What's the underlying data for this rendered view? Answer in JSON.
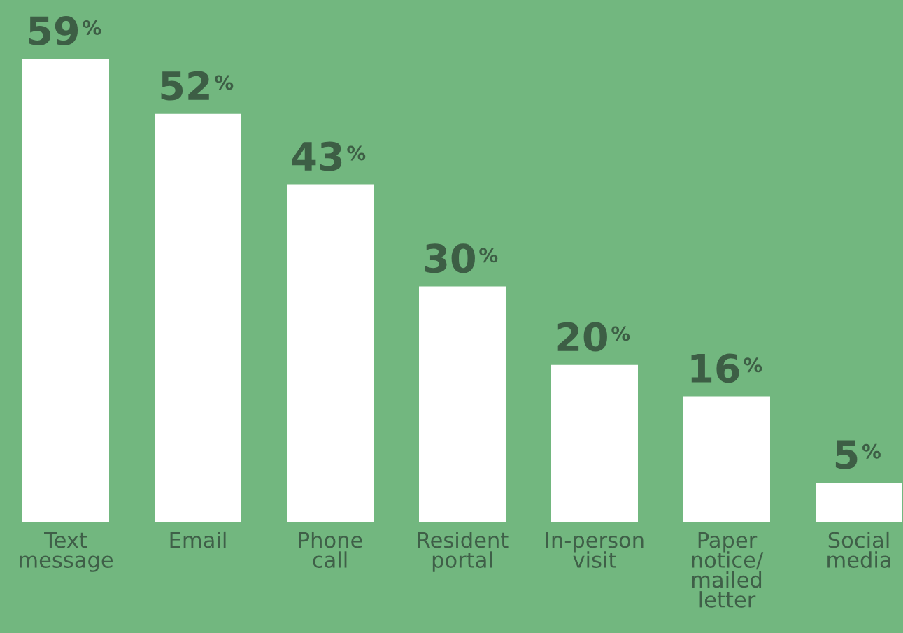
{
  "chart_data": {
    "type": "bar",
    "categories": [
      "Text\nmessage",
      "Email",
      "Phone\ncall",
      "Resident\nportal",
      "In-person\nvisit",
      "Paper\nnotice/\nmailed\nletter",
      "Social\nmedia"
    ],
    "values": [
      59,
      52,
      43,
      30,
      20,
      16,
      5
    ],
    "value_labels": [
      "59%",
      "52%",
      "43%",
      "30%",
      "20%",
      "16%",
      "5%"
    ],
    "color": "#ffffff",
    "ylim": [
      0,
      66.5
    ],
    "grid": false,
    "legend": false
  }
}
